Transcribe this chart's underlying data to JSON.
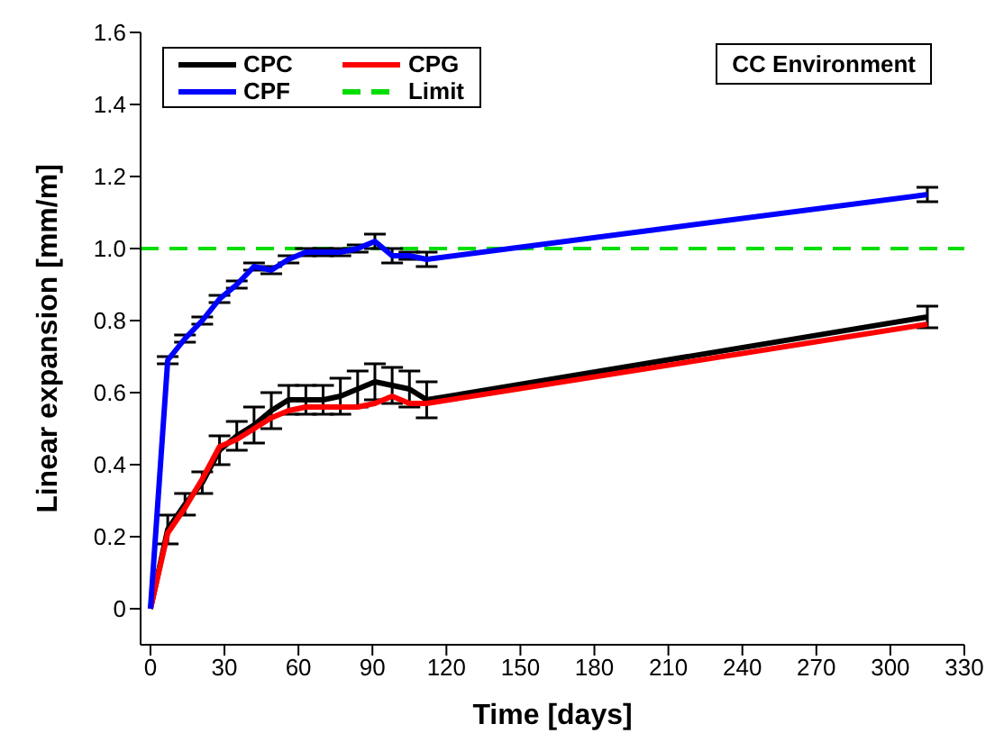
{
  "chart_data": {
    "type": "line",
    "xlabel": "Time [days]",
    "ylabel": "Linear expansion [mm/m]",
    "x": [
      0,
      7,
      14,
      21,
      28,
      35,
      42,
      49,
      56,
      63,
      70,
      77,
      84,
      91,
      98,
      105,
      112,
      315
    ],
    "series": [
      {
        "name": "CPC",
        "color": "#000000",
        "values": [
          0,
          0.22,
          0.29,
          0.35,
          0.44,
          0.48,
          0.51,
          0.55,
          0.58,
          0.58,
          0.58,
          0.59,
          0.61,
          0.63,
          0.62,
          0.61,
          0.58,
          0.81
        ],
        "errors": [
          null,
          0.04,
          0.03,
          0.03,
          0.04,
          0.04,
          0.05,
          0.05,
          0.04,
          0.04,
          0.04,
          0.05,
          0.05,
          0.05,
          0.05,
          0.05,
          0.05,
          0.03
        ]
      },
      {
        "name": "CPG",
        "color": "#ff0000",
        "values": [
          0,
          0.21,
          0.28,
          0.36,
          0.45,
          0.47,
          0.5,
          0.53,
          0.55,
          0.56,
          0.56,
          0.56,
          0.56,
          0.57,
          0.59,
          0.57,
          0.57,
          0.79
        ]
      },
      {
        "name": "CPF",
        "color": "#0000ff",
        "values": [
          0,
          0.69,
          0.75,
          0.8,
          0.86,
          0.9,
          0.95,
          0.94,
          0.97,
          0.99,
          0.99,
          0.99,
          1.0,
          1.02,
          0.98,
          0.98,
          0.97,
          1.15
        ],
        "errors": [
          null,
          0.01,
          0.01,
          0.01,
          0.01,
          0.01,
          0.01,
          0.01,
          0.01,
          0.01,
          0.01,
          0.01,
          0.01,
          0.02,
          0.02,
          0.01,
          0.02,
          0.02
        ]
      }
    ],
    "ref_lines": [
      {
        "axis": "y",
        "value": 1.0,
        "label": "Limit",
        "color": "#00dd00",
        "line_style": "dashed"
      }
    ],
    "annotations": [
      "CC Environment"
    ],
    "xlim": [
      -4,
      330
    ],
    "xticks": [
      0,
      30,
      60,
      90,
      120,
      150,
      180,
      210,
      240,
      270,
      300,
      330
    ],
    "ylim": [
      -0.1,
      1.6
    ],
    "yticks": [
      0,
      0.2,
      0.4,
      0.6,
      0.8,
      {
        "value": 1,
        "label": "1.0"
      },
      1.2,
      1.4,
      1.6
    ],
    "legend": "top left"
  }
}
